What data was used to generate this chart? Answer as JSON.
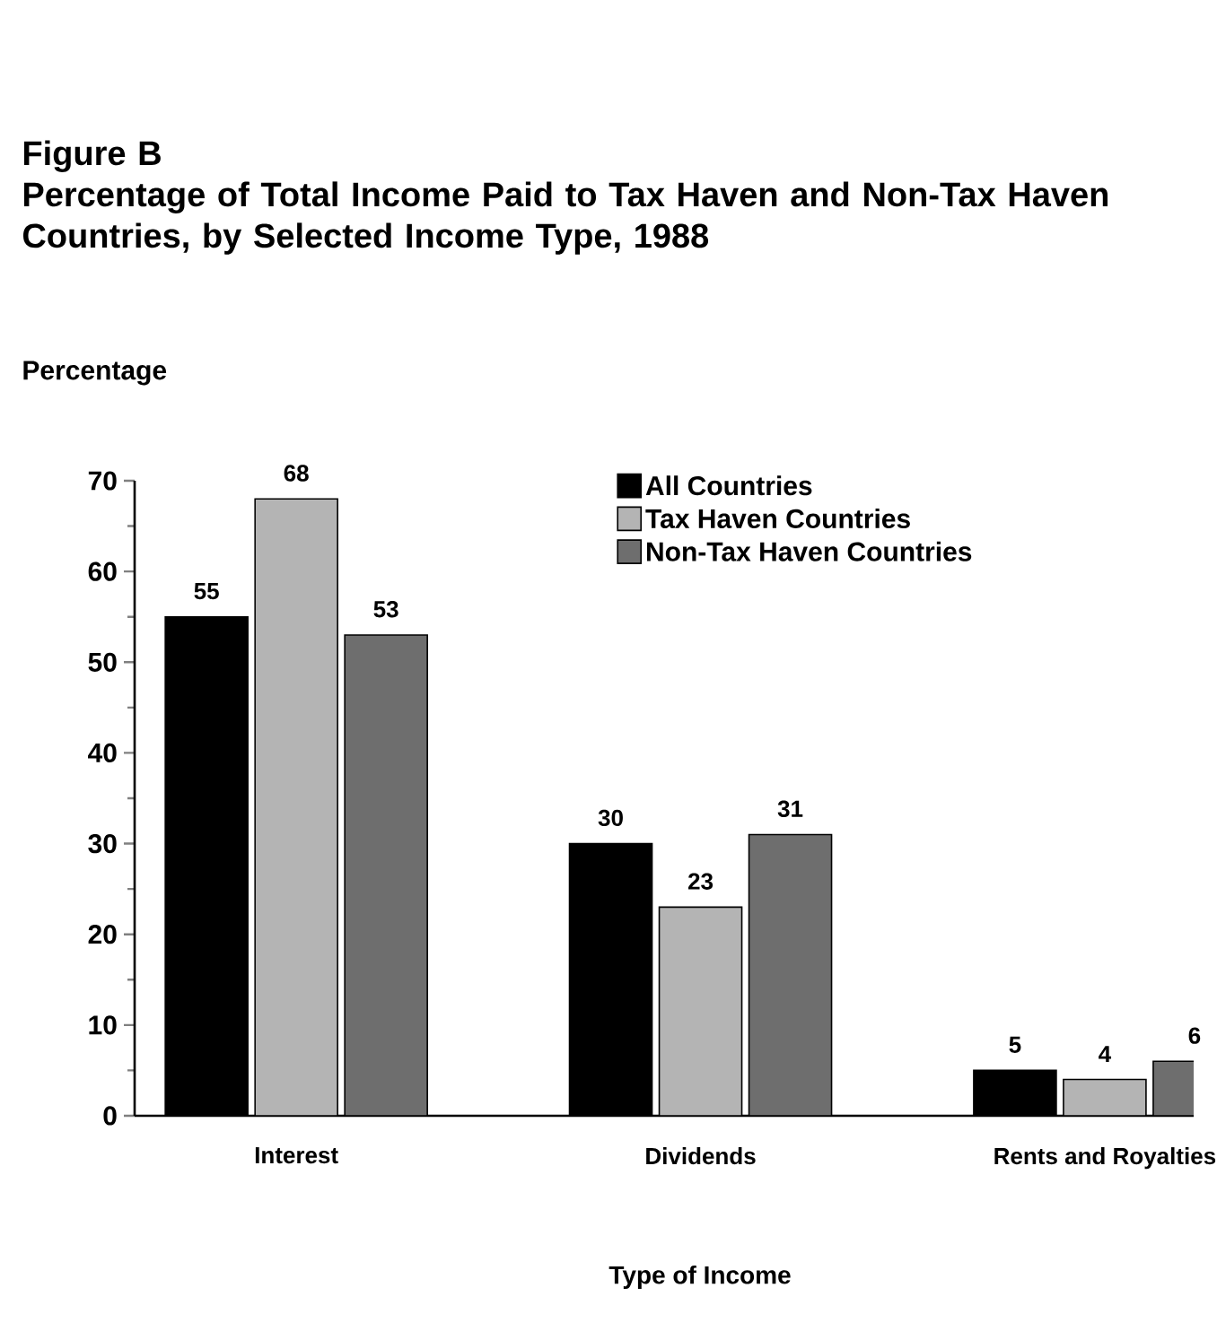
{
  "chart_data": {
    "type": "bar",
    "title": "Figure B",
    "subtitle": "Percentage of Total Income Paid to Tax Haven and Non-Tax Haven Countries, by Selected Income Type, 1988",
    "xlabel": "Type of Income",
    "ylabel": "Percentage",
    "categories": [
      "Interest",
      "Dividends",
      "Rents and Royalties"
    ],
    "series": [
      {
        "name": "All Countries",
        "color": "#000000",
        "values": [
          55,
          30,
          5
        ]
      },
      {
        "name": "Tax Haven Countries",
        "color": "#b4b4b4",
        "values": [
          68,
          23,
          4
        ]
      },
      {
        "name": "Non-Tax Haven Countries",
        "color": "#6e6e6e",
        "values": [
          53,
          31,
          6
        ]
      }
    ],
    "ylim": [
      0,
      70
    ],
    "yticks": [
      0,
      10,
      20,
      30,
      40,
      50,
      60,
      70
    ],
    "legend": "top right",
    "data_labels": true
  }
}
